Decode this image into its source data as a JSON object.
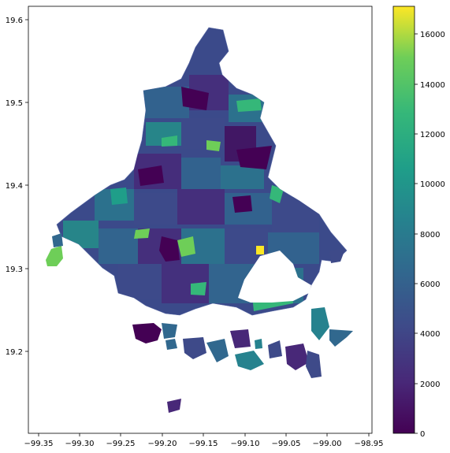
{
  "map": {
    "x_ticks": [
      "−99.35",
      "−99.30",
      "−99.25",
      "−99.20",
      "−99.15",
      "−99.10",
      "−99.05",
      "−99.00",
      "−98.95"
    ],
    "y_ticks": [
      "19.6",
      "19.5",
      "19.4",
      "19.3",
      "19.2"
    ],
    "colorbar_ticks": [
      "16000",
      "14000",
      "12000",
      "10000",
      "8000",
      "6000",
      "4000",
      "2000",
      "0"
    ],
    "colormap": "viridis",
    "colorbar_range": [
      0,
      17200
    ],
    "colors": {
      "background": "#ffffff",
      "map_base": "#3b4a8a",
      "low": "#440154",
      "mid": "#21908d",
      "high": "#fde725"
    }
  }
}
